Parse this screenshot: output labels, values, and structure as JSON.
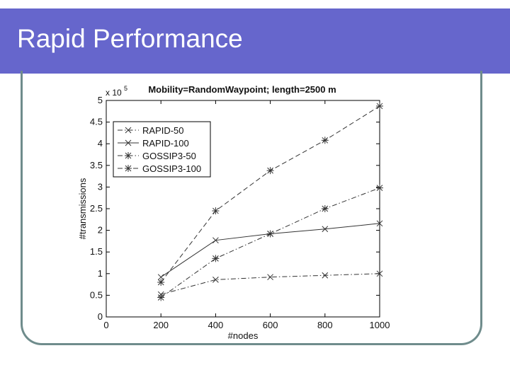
{
  "slide": {
    "title": "Rapid Performance"
  },
  "chart_data": {
    "type": "line",
    "title": "Mobility=RandomWaypoint; length=2500 m",
    "xlabel": "#nodes",
    "ylabel": "#transmissions",
    "y_multiplier_label": "x 10",
    "y_multiplier_exponent": "5",
    "xlim": [
      0,
      1000
    ],
    "ylim": [
      0,
      5
    ],
    "x_ticks": [
      "0",
      "200",
      "400",
      "600",
      "800",
      "1000"
    ],
    "y_ticks": [
      "0",
      "0.5",
      "1",
      "1.5",
      "2",
      "2.5",
      "3",
      "3.5",
      "4",
      "4.5",
      "5"
    ],
    "legend_position": "upper-left",
    "grid": false,
    "x": [
      200,
      400,
      600,
      800,
      1000
    ],
    "series": [
      {
        "name": "RAPID-50",
        "values": [
          0.52,
          0.86,
          0.92,
          0.96,
          1.0
        ],
        "dash": "dashdot",
        "marker": "x",
        "color": "#333333"
      },
      {
        "name": "RAPID-100",
        "values": [
          0.92,
          1.77,
          1.92,
          2.03,
          2.16
        ],
        "dash": "solid",
        "marker": "x",
        "color": "#333333"
      },
      {
        "name": "GOSSIP3-50",
        "values": [
          0.45,
          1.35,
          1.92,
          2.5,
          2.98
        ],
        "dash": "dashdot",
        "marker": "star",
        "color": "#333333"
      },
      {
        "name": "GOSSIP3-100",
        "values": [
          0.8,
          2.45,
          3.38,
          4.08,
          4.87
        ],
        "dash": "dashed",
        "marker": "star",
        "color": "#333333"
      }
    ]
  }
}
